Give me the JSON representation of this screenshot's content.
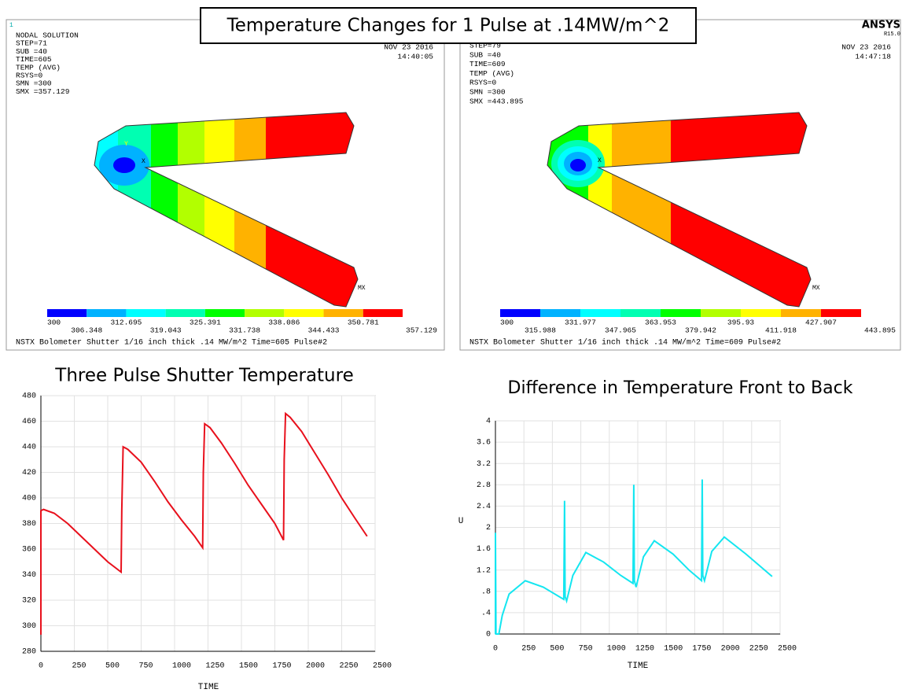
{
  "header": {
    "title": "Temperature Changes for 1 Pulse at .14MW/m^2"
  },
  "panels": [
    {
      "id_label": "1",
      "lines": [
        "NODAL SOLUTION",
        "STEP=71",
        "SUB =40",
        "TIME=605",
        "TEMP     (AVG)",
        "RSYS=0",
        "SMN =300",
        "SMX =357.129"
      ],
      "date": "NOV 23 2016",
      "time": "14:40:05",
      "triad_y": "Y",
      "triad_x": "X",
      "max_marker": "MX",
      "legend_levels": [
        300,
        306.348,
        312.695,
        319.043,
        325.391,
        331.738,
        338.086,
        344.433,
        350.781,
        357.129
      ],
      "legend_colors": [
        "#0000ff",
        "#00b2ff",
        "#00ffff",
        "#00ffb2",
        "#00ff00",
        "#b2ff00",
        "#ffff00",
        "#ffb200",
        "#ff0000"
      ],
      "footer": "NSTX Bolometer Shutter 1/16 inch thick .14 MW/m^2   Time=605 Pulse#2"
    },
    {
      "logo": "ANSYS",
      "version": "R15.0",
      "lines": [
        "STEP=79",
        "SUB =40",
        "TIME=609",
        "TEMP     (AVG)",
        "RSYS=0",
        "SMN =300",
        "SMX =443.895"
      ],
      "date": "NOV 23 2016",
      "time": "14:47:18",
      "triad_x": "X",
      "max_marker": "MX",
      "legend_levels": [
        300,
        315.988,
        331.977,
        347.965,
        363.953,
        379.942,
        395.93,
        411.918,
        427.907,
        443.895
      ],
      "legend_colors": [
        "#0000ff",
        "#00b2ff",
        "#00ffff",
        "#00ffb2",
        "#00ff00",
        "#b2ff00",
        "#ffff00",
        "#ffb200",
        "#ff0000"
      ],
      "footer": "NSTX Bolometer Shutter 1/16 inch thick .14 MW/m^2   Time=609 Pulse#2"
    }
  ],
  "chart_data": [
    {
      "type": "line",
      "title": "Three Pulse Shutter Temperature",
      "xlabel": "TIME",
      "color": "#e8101c",
      "x": [
        0,
        0,
        20,
        100,
        200,
        300,
        400,
        500,
        600,
        605,
        615,
        650,
        750,
        850,
        950,
        1050,
        1150,
        1210,
        1215,
        1225,
        1265,
        1350,
        1450,
        1550,
        1650,
        1750,
        1815,
        1820,
        1830,
        1865,
        1950,
        2050,
        2150,
        2250,
        2350,
        2440
      ],
      "values": [
        293,
        390,
        391,
        388,
        380,
        370,
        360,
        350,
        342,
        390,
        440,
        438,
        428,
        413,
        397,
        383,
        370,
        361,
        420,
        458,
        455,
        443,
        427,
        410,
        395,
        380,
        367,
        430,
        466,
        463,
        452,
        435,
        418,
        400,
        384,
        370
      ],
      "xlim": [
        0,
        2500
      ],
      "ylim": [
        280,
        480
      ],
      "xticks": [
        0,
        250,
        500,
        750,
        1000,
        1250,
        1500,
        1750,
        2000,
        2250,
        2500
      ],
      "yticks": [
        280,
        300,
        320,
        340,
        360,
        380,
        400,
        420,
        440,
        460,
        480
      ],
      "grid": true
    },
    {
      "type": "line",
      "title": "Difference in Temperature Front to Back",
      "xlabel": "TIME",
      "ylabel": "U",
      "color": "#14e6f0",
      "x": [
        0,
        0,
        5,
        30,
        60,
        120,
        262,
        420,
        600,
        607,
        612,
        625,
        680,
        794,
        950,
        1100,
        1208,
        1215,
        1220,
        1235,
        1300,
        1395,
        1560,
        1700,
        1810,
        1816,
        1821,
        1836,
        1900,
        2010,
        2200,
        2430
      ],
      "values": [
        0,
        1.9,
        0,
        0,
        0.35,
        0.75,
        1.0,
        0.88,
        0.65,
        2.5,
        0.7,
        0.62,
        1.1,
        1.53,
        1.35,
        1.1,
        0.95,
        2.8,
        1.0,
        0.88,
        1.45,
        1.75,
        1.5,
        1.2,
        1.0,
        2.9,
        1.1,
        1.0,
        1.55,
        1.82,
        1.5,
        1.08
      ],
      "xlim": [
        0,
        2500
      ],
      "ylim": [
        0,
        4
      ],
      "xticks": [
        0,
        250,
        500,
        750,
        1000,
        1250,
        1500,
        1750,
        2000,
        2250,
        2500
      ],
      "yticks": [
        0,
        {
          "value": 0.4,
          "label": ".4"
        },
        {
          "value": 0.8,
          "label": ".8"
        },
        1.2,
        1.6,
        2,
        2.4,
        2.8,
        3.2,
        3.6,
        4
      ],
      "grid": true
    }
  ]
}
